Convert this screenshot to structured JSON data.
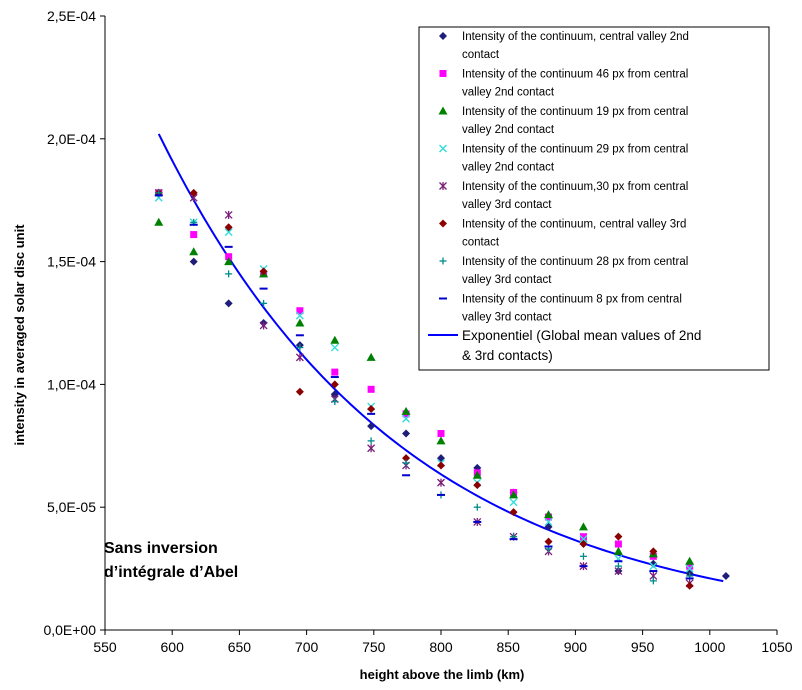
{
  "chart_data": {
    "type": "scatter",
    "title": "",
    "xlabel": "height above the limb (km)",
    "ylabel": "intensity in averaged solar disc unit",
    "xlim": [
      550,
      1050
    ],
    "ylim": [
      0,
      0.00025
    ],
    "x_ticks": [
      550,
      600,
      650,
      700,
      750,
      800,
      850,
      900,
      950,
      1000,
      1050
    ],
    "y_ticks": [
      0,
      5e-05,
      0.0001,
      0.00015,
      0.0002,
      0.00025
    ],
    "x_tick_labels": [
      "550",
      "600",
      "650",
      "700",
      "750",
      "800",
      "850",
      "900",
      "950",
      "1000",
      "1050"
    ],
    "y_tick_labels": [
      "0,0E+00",
      "5,0E-05",
      "1,0E-04",
      "1,5E-04",
      "2,0E-04",
      "2,5E-04"
    ],
    "grid": false,
    "legend_position": "top-right",
    "annotation": [
      "Sans inversion",
      "d’intégrale d’Abel"
    ],
    "series": [
      {
        "name": [
          "Intensity of the continuum, central valley 2nd",
          "contact"
        ],
        "marker": "diamond",
        "color": "#1f1f7a",
        "x": [
          590,
          616,
          642,
          668,
          695,
          721,
          748,
          774,
          800,
          827,
          854,
          880,
          906,
          932,
          958,
          985,
          1012
        ],
        "y": [
          0.000178,
          0.00015,
          0.000133,
          0.000125,
          0.000116,
          9.6e-05,
          8.3e-05,
          8e-05,
          7e-05,
          6.6e-05,
          5.6e-05,
          4.2e-05,
          3.6e-05,
          2.4e-05,
          2.7e-05,
          2.3e-05,
          2.2e-05
        ]
      },
      {
        "name": [
          "Intensity of the continuum 46 px from central",
          "valley 2nd contact"
        ],
        "marker": "square",
        "color": "#ff00ff",
        "x": [
          590,
          616,
          642,
          668,
          695,
          721,
          748,
          774,
          800,
          827,
          854,
          880,
          906,
          932,
          958,
          985
        ],
        "y": [
          0.000178,
          0.000161,
          0.000152,
          0.000145,
          0.00013,
          0.000105,
          9.8e-05,
          8.8e-05,
          8e-05,
          6.4e-05,
          5.6e-05,
          4.6e-05,
          3.8e-05,
          3.5e-05,
          3e-05,
          2.6e-05
        ]
      },
      {
        "name": [
          "Intensity of the continuum 19 px from central",
          "valley 2nd contact"
        ],
        "marker": "triangle",
        "color": "#008000",
        "x": [
          590,
          616,
          642,
          668,
          695,
          721,
          748,
          774,
          800,
          827,
          854,
          880,
          906,
          932,
          958,
          985
        ],
        "y": [
          0.000166,
          0.000154,
          0.00015,
          0.000145,
          0.000125,
          0.000118,
          0.000111,
          8.9e-05,
          7.7e-05,
          6.3e-05,
          5.5e-05,
          4.7e-05,
          4.2e-05,
          3.2e-05,
          3.1e-05,
          2.8e-05
        ]
      },
      {
        "name": [
          "Intensity of the continuum 29 px from central",
          "valley 2nd contact"
        ],
        "marker": "x",
        "color": "#33dddd",
        "x": [
          590,
          616,
          642,
          668,
          695,
          721,
          748,
          774,
          800,
          827,
          854,
          880,
          906,
          932,
          958,
          985
        ],
        "y": [
          0.000176,
          0.000166,
          0.000162,
          0.000147,
          0.000128,
          0.000115,
          9.1e-05,
          8.6e-05,
          6.8e-05,
          6e-05,
          5.2e-05,
          4.4e-05,
          3.7e-05,
          2.9e-05,
          2.6e-05,
          2.5e-05
        ]
      },
      {
        "name": [
          "Intensity of the continuum,30 px from central",
          "valley 3rd contact"
        ],
        "marker": "star",
        "color": "#7a1f7a",
        "x": [
          590,
          616,
          642,
          668,
          695,
          721,
          748,
          774,
          800,
          827,
          854,
          880,
          906,
          932,
          958,
          985
        ],
        "y": [
          0.000178,
          0.000176,
          0.000169,
          0.000124,
          0.000111,
          9.4e-05,
          7.4e-05,
          6.7e-05,
          6e-05,
          4.4e-05,
          3.8e-05,
          3.2e-05,
          2.6e-05,
          2.4e-05,
          2.2e-05,
          1.9e-05
        ]
      },
      {
        "name": [
          "Intensity of the continuum, central valley 3rd",
          "contact"
        ],
        "marker": "diamond",
        "color": "#8b0000",
        "x": [
          590,
          616,
          642,
          668,
          695,
          721,
          748,
          774,
          800,
          827,
          854,
          880,
          906,
          932,
          958,
          985
        ],
        "y": [
          0.000178,
          0.000178,
          0.000164,
          0.000146,
          9.7e-05,
          0.0001,
          9e-05,
          7e-05,
          6.7e-05,
          5.9e-05,
          4.8e-05,
          3.6e-05,
          3.5e-05,
          3.8e-05,
          3.2e-05,
          1.8e-05
        ]
      },
      {
        "name": [
          "Intensity of the continuum 28 px from central",
          "valley 3rd contact"
        ],
        "marker": "plus",
        "color": "#008b8b",
        "x": [
          590,
          616,
          642,
          668,
          695,
          721,
          748,
          774,
          800,
          827,
          854,
          880,
          906,
          932,
          958,
          985
        ],
        "y": [
          0.000178,
          0.000166,
          0.000145,
          0.000133,
          0.000115,
          9.3e-05,
          7.7e-05,
          6.8e-05,
          5.5e-05,
          5e-05,
          3.8e-05,
          3.3e-05,
          3e-05,
          2.6e-05,
          2e-05,
          2.2e-05
        ]
      },
      {
        "name": [
          "Intensity of the continuum 8 px from central",
          "valley 3rd contact"
        ],
        "marker": "dash",
        "color": "#0000cd",
        "x": [
          590,
          616,
          642,
          668,
          695,
          721,
          748,
          774,
          800,
          827,
          854,
          880,
          906,
          932,
          958,
          985
        ],
        "y": [
          0.000177,
          0.000165,
          0.000156,
          0.000139,
          0.00012,
          0.000103,
          8.8e-05,
          6.3e-05,
          5.5e-05,
          4.4e-05,
          3.7e-05,
          3.4e-05,
          2.6e-05,
          2.8e-05,
          2.4e-05,
          2.1e-05
        ]
      }
    ],
    "trendline": {
      "name": [
        "Exponentiel (Global mean values of 2nd",
        "& 3rd contacts)"
      ],
      "type": "exponential",
      "color": "#0000ff",
      "x": [
        590,
        1010
      ],
      "y_at_start": 0.000202,
      "y_at_end": 1.99e-05
    }
  }
}
